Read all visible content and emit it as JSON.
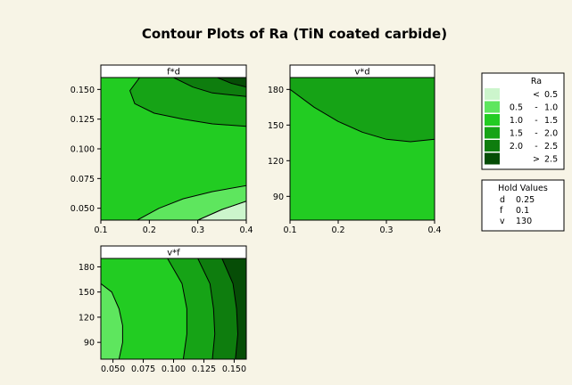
{
  "chart_data": {
    "type": "contour",
    "title": "Contour Plots of Ra (TiN coated carbide)",
    "colors": {
      "page_background": "#f7f4e6",
      "plot_border": "#000000",
      "contour_line": "#000000"
    },
    "panels": [
      {
        "label": "f*d",
        "x_var": "d",
        "y_var": "f",
        "xlim": [
          0.1,
          0.4
        ],
        "ylim": [
          0.04,
          0.16
        ],
        "x_ticks": [
          "0.1",
          "0.2",
          "0.3",
          "0.4"
        ],
        "y_ticks": [
          "0.050",
          "0.075",
          "0.100",
          "0.125",
          "0.150"
        ],
        "regions": [
          {
            "level": "< 0.5",
            "points": [
              [
                0.3,
                0.04
              ],
              [
                0.35,
                0.049
              ],
              [
                0.4,
                0.056
              ],
              [
                0.4,
                0.04
              ]
            ]
          },
          {
            "level": "0.5 - 1.0",
            "points": [
              [
                0.175,
                0.04
              ],
              [
                0.22,
                0.05
              ],
              [
                0.27,
                0.058
              ],
              [
                0.33,
                0.064
              ],
              [
                0.4,
                0.069
              ],
              [
                0.4,
                0.056
              ],
              [
                0.35,
                0.049
              ],
              [
                0.3,
                0.04
              ]
            ]
          },
          {
            "level": "1.5 - 2.0",
            "points": [
              [
                0.18,
                0.16
              ],
              [
                0.16,
                0.149
              ],
              [
                0.17,
                0.138
              ],
              [
                0.21,
                0.13
              ],
              [
                0.27,
                0.125
              ],
              [
                0.33,
                0.121
              ],
              [
                0.4,
                0.119
              ],
              [
                0.4,
                0.16
              ]
            ]
          },
          {
            "level": "2.0 - 2.5",
            "points": [
              [
                0.25,
                0.16
              ],
              [
                0.29,
                0.152
              ],
              [
                0.33,
                0.147
              ],
              [
                0.4,
                0.144
              ],
              [
                0.4,
                0.16
              ]
            ]
          },
          {
            "level": "> 2.5",
            "points": [
              [
                0.34,
                0.16
              ],
              [
                0.37,
                0.155
              ],
              [
                0.4,
                0.152
              ],
              [
                0.4,
                0.16
              ]
            ]
          }
        ]
      },
      {
        "label": "v*d",
        "x_var": "d",
        "y_var": "v",
        "xlim": [
          0.1,
          0.4
        ],
        "ylim": [
          70,
          190
        ],
        "x_ticks": [
          "0.1",
          "0.2",
          "0.3",
          "0.4"
        ],
        "y_ticks": [
          "90",
          "120",
          "150",
          "180"
        ],
        "regions": [
          {
            "level": "1.5 - 2.0",
            "points": [
              [
                0.1,
                190
              ],
              [
                0.1,
                180
              ],
              [
                0.15,
                165
              ],
              [
                0.2,
                153
              ],
              [
                0.25,
                144
              ],
              [
                0.3,
                138
              ],
              [
                0.35,
                136
              ],
              [
                0.4,
                138
              ],
              [
                0.4,
                190
              ]
            ]
          }
        ]
      },
      {
        "label": "v*f",
        "x_var": "f",
        "y_var": "v",
        "xlim": [
          0.04,
          0.16
        ],
        "ylim": [
          70,
          190
        ],
        "x_ticks": [
          "0.050",
          "0.075",
          "0.100",
          "0.125",
          "0.150"
        ],
        "y_ticks": [
          "90",
          "120",
          "150",
          "180"
        ],
        "regions": [
          {
            "level": "0.5 - 1.0",
            "points": [
              [
                0.04,
                70
              ],
              [
                0.055,
                70
              ],
              [
                0.058,
                90
              ],
              [
                0.058,
                110
              ],
              [
                0.055,
                130
              ],
              [
                0.049,
                150
              ],
              [
                0.04,
                160
              ]
            ]
          },
          {
            "level": "1.5 - 2.0",
            "points": [
              [
                0.095,
                190
              ],
              [
                0.107,
                160
              ],
              [
                0.111,
                130
              ],
              [
                0.111,
                100
              ],
              [
                0.108,
                70
              ],
              [
                0.16,
                70
              ],
              [
                0.16,
                190
              ]
            ]
          },
          {
            "level": "2.0 - 2.5",
            "points": [
              [
                0.12,
                190
              ],
              [
                0.13,
                160
              ],
              [
                0.133,
                130
              ],
              [
                0.134,
                100
              ],
              [
                0.132,
                70
              ],
              [
                0.16,
                70
              ],
              [
                0.16,
                190
              ]
            ]
          },
          {
            "level": "> 2.5",
            "points": [
              [
                0.14,
                190
              ],
              [
                0.149,
                160
              ],
              [
                0.152,
                130
              ],
              [
                0.153,
                100
              ],
              [
                0.151,
                70
              ],
              [
                0.16,
                70
              ],
              [
                0.16,
                190
              ]
            ]
          }
        ]
      }
    ],
    "default_level": "1.0 - 1.5",
    "legend": {
      "title": "Ra",
      "placement": "top-right",
      "items": [
        {
          "low": "",
          "sep": "<",
          "high": "0.5",
          "level": "< 0.5",
          "color": "#ccf5cc"
        },
        {
          "low": "0.5",
          "sep": "-",
          "high": "1.0",
          "level": "0.5 - 1.0",
          "color": "#5ee65e"
        },
        {
          "low": "1.0",
          "sep": "-",
          "high": "1.5",
          "level": "1.0 - 1.5",
          "color": "#22cc22"
        },
        {
          "low": "1.5",
          "sep": "-",
          "high": "2.0",
          "level": "1.5 - 2.0",
          "color": "#16a316"
        },
        {
          "low": "2.0",
          "sep": "-",
          "high": "2.5",
          "level": "2.0 - 2.5",
          "color": "#0e7d0e"
        },
        {
          "low": "",
          "sep": ">",
          "high": "2.5",
          "level": "> 2.5",
          "color": "#064d06"
        }
      ]
    },
    "hold_values": {
      "title": "Hold Values",
      "items": [
        {
          "name": "d",
          "value": "0.25"
        },
        {
          "name": "f",
          "value": "0.1"
        },
        {
          "name": "v",
          "value": "130"
        }
      ]
    }
  }
}
